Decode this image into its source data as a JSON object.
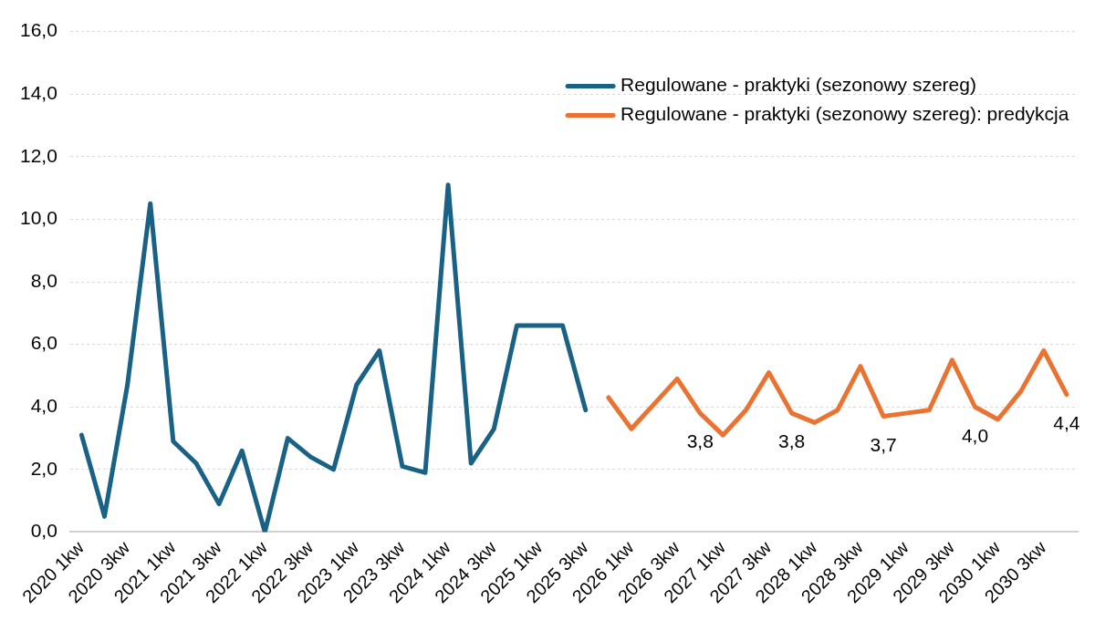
{
  "chart_data": {
    "type": "line",
    "categories": [
      "2020 1kw",
      null,
      "2020 3kw",
      null,
      "2021 1kw",
      null,
      "2021 3kw",
      null,
      "2022 1kw",
      null,
      "2022 3kw",
      null,
      "2023 1kw",
      null,
      "2023 3kw",
      null,
      "2024 1kw",
      null,
      "2024 3kw",
      null,
      "2025 1kw",
      null,
      "2025 3kw",
      null,
      "2026 1kw",
      null,
      "2026 3kw",
      null,
      "2027 1kw",
      null,
      "2027 3kw",
      null,
      "2028 1kw",
      null,
      "2028 3kw",
      null,
      "2029 1kw",
      null,
      "2029 3kw",
      null,
      "2030 1kw",
      null,
      "2030 3kw",
      null
    ],
    "series": [
      {
        "name": "Regulowane - praktyki (sezonowy szereg)",
        "color": "#1a6285",
        "values": [
          3.1,
          0.5,
          4.7,
          10.5,
          2.9,
          2.2,
          0.9,
          2.6,
          0.0,
          3.0,
          2.4,
          2.0,
          4.7,
          5.8,
          2.1,
          1.9,
          11.1,
          2.2,
          3.3,
          6.6,
          6.6,
          6.6,
          3.9,
          null,
          null,
          null,
          null,
          null,
          null,
          null,
          null,
          null,
          null,
          null,
          null,
          null,
          null,
          null,
          null,
          null,
          null,
          null,
          null,
          null
        ]
      },
      {
        "name": "Regulowane - praktyki (sezonowy szereg): predykcja",
        "color": "#ea7332",
        "values": [
          null,
          null,
          null,
          null,
          null,
          null,
          null,
          null,
          null,
          null,
          null,
          null,
          null,
          null,
          null,
          null,
          null,
          null,
          null,
          null,
          null,
          null,
          null,
          4.3,
          3.3,
          4.1,
          4.9,
          3.8,
          3.1,
          3.9,
          5.1,
          3.8,
          3.5,
          3.9,
          5.3,
          3.7,
          3.8,
          3.9,
          5.5,
          4.0,
          3.6,
          4.5,
          5.8,
          4.4
        ],
        "value_labels": [
          null,
          null,
          null,
          null,
          null,
          null,
          null,
          null,
          null,
          null,
          null,
          null,
          null,
          null,
          null,
          null,
          null,
          null,
          null,
          null,
          null,
          null,
          null,
          null,
          null,
          null,
          null,
          "3,8",
          null,
          null,
          null,
          "3,8",
          null,
          null,
          null,
          "3,7",
          null,
          null,
          null,
          "4,0",
          null,
          null,
          null,
          "4,4"
        ]
      }
    ],
    "ylim": [
      0,
      16
    ],
    "yticks": [
      {
        "value": 0,
        "label": "0,0"
      },
      {
        "value": 2,
        "label": "2,0"
      },
      {
        "value": 4,
        "label": "4,0"
      },
      {
        "value": 6,
        "label": "6,0"
      },
      {
        "value": 8,
        "label": "8,0"
      },
      {
        "value": 10,
        "label": "10,0"
      },
      {
        "value": 12,
        "label": "12,0"
      },
      {
        "value": 14,
        "label": "14,0"
      },
      {
        "value": 16,
        "label": "16,0"
      }
    ],
    "grid": "y",
    "legend": "top right",
    "marker": "none",
    "line_style": "solid"
  }
}
